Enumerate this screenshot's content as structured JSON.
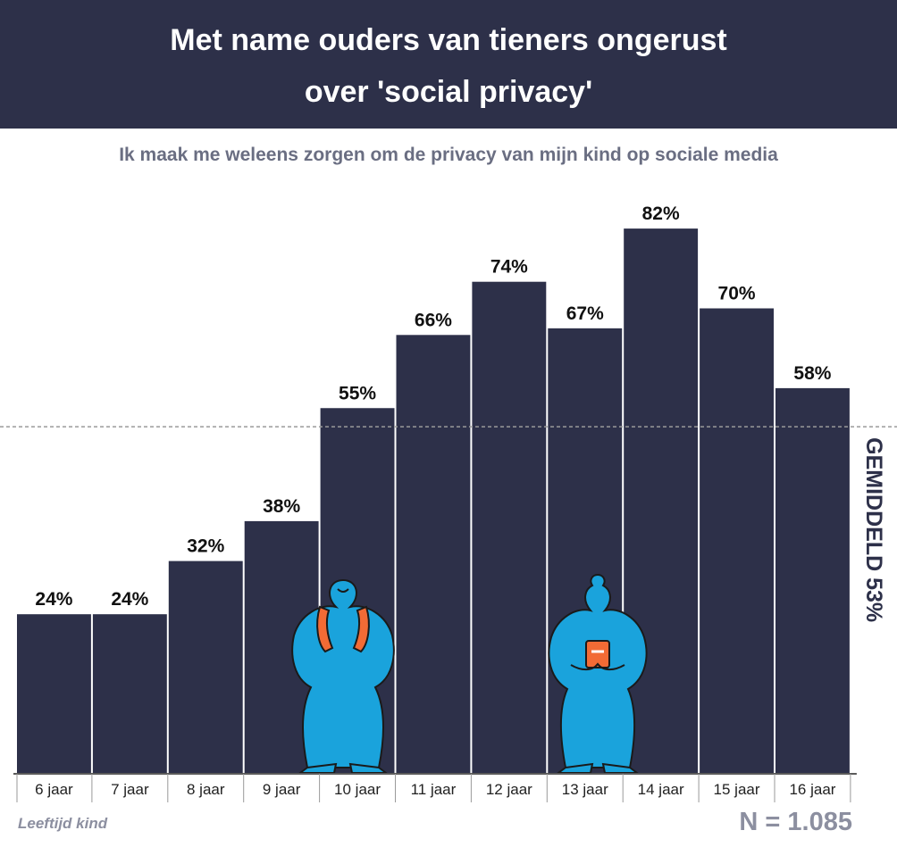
{
  "header": {
    "title_line1": "Met name ouders van tieners ongerust",
    "title_line2": "over 'social privacy'"
  },
  "subtitle": "Ik maak me weleens zorgen om de privacy van mijn kind op sociale media",
  "footer": {
    "xlabel": "Leeftijd kind",
    "sample": "N = 1.085"
  },
  "colors": {
    "header_bg": "#2d3049",
    "bar": "#2d3049",
    "figure_blue": "#1aa3dc",
    "figure_orange": "#f26b35"
  },
  "chart_data": {
    "type": "bar",
    "title": "Met name ouders van tieners ongerust over 'social privacy'",
    "subtitle": "Ik maak me weleens zorgen om de privacy van mijn kind op sociale media",
    "xlabel": "Leeftijd kind",
    "ylabel": "",
    "categories": [
      "6 jaar",
      "7 jaar",
      "8 jaar",
      "9 jaar",
      "10 jaar",
      "11 jaar",
      "12 jaar",
      "13 jaar",
      "14 jaar",
      "15 jaar",
      "16 jaar"
    ],
    "values": [
      24,
      24,
      32,
      38,
      55,
      66,
      74,
      67,
      82,
      70,
      58
    ],
    "data_labels": [
      "24%",
      "24%",
      "32%",
      "38%",
      "55%",
      "66%",
      "74%",
      "67%",
      "82%",
      "70%",
      "58%"
    ],
    "ylim": [
      0,
      100
    ],
    "reference_line": {
      "value": 53,
      "label": "GEMIDDELD 53%"
    },
    "grid": false,
    "legend": "none"
  },
  "illustrations": [
    {
      "name": "teen-with-backpack",
      "icon": "person-backpack-icon"
    },
    {
      "name": "teen-with-phone",
      "icon": "person-phone-icon"
    }
  ]
}
